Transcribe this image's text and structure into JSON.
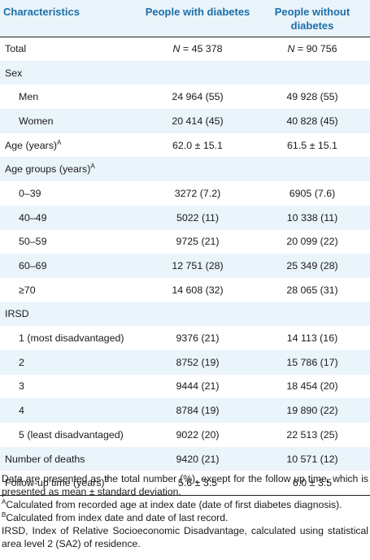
{
  "table": {
    "headers": [
      "Characteristics",
      "People with diabetes",
      "People without diabetes"
    ],
    "rows": [
      {
        "label": "Total",
        "with": "N = 45 378",
        "without": "N = 90 756"
      },
      {
        "label": "Sex",
        "with": "",
        "without": ""
      },
      {
        "label": "Men",
        "with": "24 964 (55)",
        "without": "49 928 (55)"
      },
      {
        "label": "Women",
        "with": "20 414 (45)",
        "without": "40 828 (45)"
      },
      {
        "label": "Age (years)",
        "sup": "A",
        "with": "62.0 ± 15.1",
        "without": "61.5 ± 15.1"
      },
      {
        "label": "Age groups (years)",
        "sup": "A",
        "with": "",
        "without": ""
      },
      {
        "label": "0–39",
        "with": "3272 (7.2)",
        "without": "6905 (7.6)"
      },
      {
        "label": "40–49",
        "with": "5022 (11)",
        "without": "10 338 (11)"
      },
      {
        "label": "50–59",
        "with": "9725 (21)",
        "without": "20 099 (22)"
      },
      {
        "label": "60–69",
        "with": "12 751 (28)",
        "without": "25 349 (28)"
      },
      {
        "label": "≥70",
        "with": "14 608 (32)",
        "without": "28 065 (31)"
      },
      {
        "label": "IRSD",
        "with": "",
        "without": ""
      },
      {
        "label": "1 (most disadvantaged)",
        "with": "9376 (21)",
        "without": "14 113 (16)"
      },
      {
        "label": "2",
        "with": "8752 (19)",
        "without": "15 786 (17)"
      },
      {
        "label": "3",
        "with": "9444 (21)",
        "without": "18 454 (20)"
      },
      {
        "label": "4",
        "with": "8784 (19)",
        "without": "19 890 (22)"
      },
      {
        "label": "5 (least disadvantaged)",
        "with": "9022 (20)",
        "without": "22 513 (25)"
      },
      {
        "label": "Number of deaths",
        "with": "9420 (21)",
        "without": "10 571 (12)"
      },
      {
        "label": "Follow-up time (years)",
        "sup": "B",
        "with": "5.6 ± 3.5",
        "without": "6.0 ± 3.5"
      }
    ]
  },
  "notes": {
    "data_note": "Data are presented as the total number (%), except for the follow up time, which is presented as mean ± standard deviation.",
    "footnote_a_mark": "A",
    "footnote_a": "Calculated from recorded age at index date (date of first diabetes diagnosis).",
    "footnote_b_mark": "B",
    "footnote_b": "Calculated from index date and date of last record.",
    "irsd_note": "IRSD, Index of Relative Socioeconomic Disadvantage, calculated using statistical area level 2 (SA2) of residence."
  }
}
